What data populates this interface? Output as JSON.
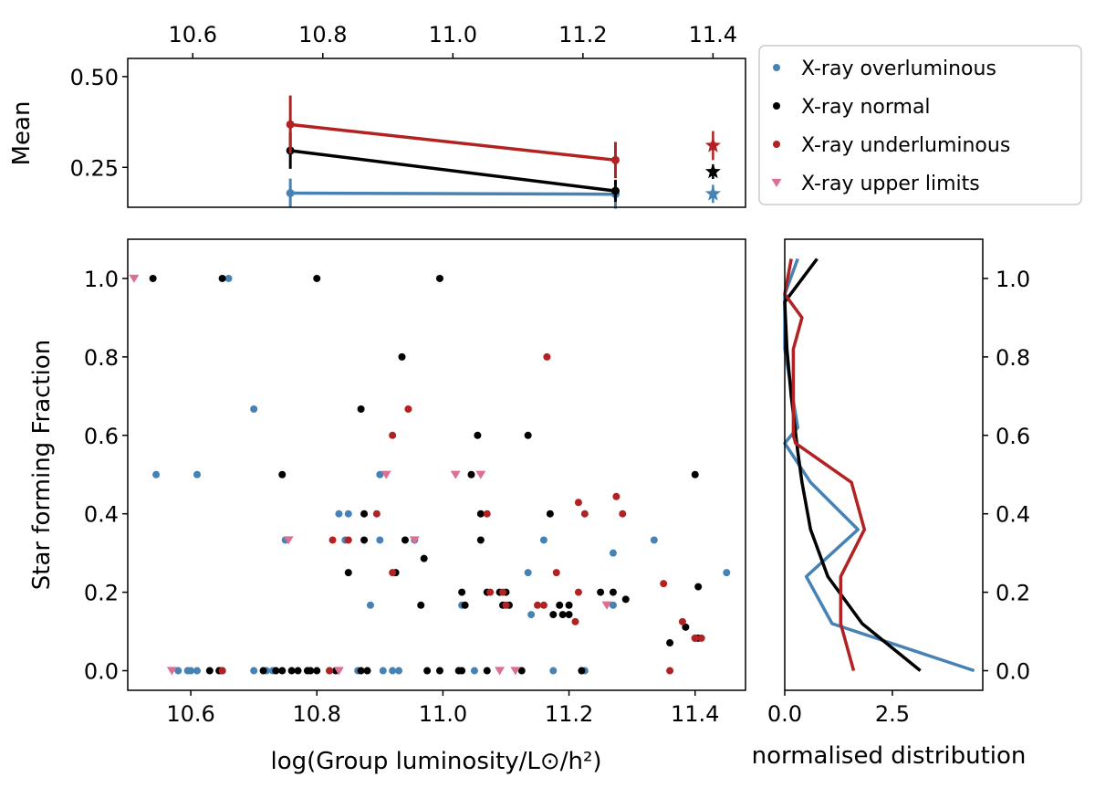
{
  "colors": {
    "overluminous": "#4682b4",
    "normal": "#000000",
    "underluminous": "#b22222",
    "upper_limits": "#db7093"
  },
  "chart_data": [
    {
      "panel": "top",
      "type": "line",
      "title": "",
      "xlabel": "",
      "ylabel": "Mean",
      "xlim": [
        10.5,
        11.45
      ],
      "ylim": [
        0.14,
        0.55
      ],
      "xticks": [
        10.6,
        10.8,
        11.0,
        11.2,
        11.4
      ],
      "xtick_labels": [
        "10.6",
        "10.8",
        "11.0",
        "11.2",
        "11.4"
      ],
      "yticks": [
        0.25,
        0.5
      ],
      "ytick_labels": [
        "0.25",
        "0.50"
      ],
      "series": [
        {
          "name": "X-ray overluminous",
          "key": "overluminous",
          "x": [
            10.75,
            11.25
          ],
          "y": [
            0.179,
            0.176
          ],
          "yerr": [
            0.04,
            0.04
          ],
          "star": {
            "x": 11.4,
            "y": 0.177,
            "err": 0.025
          }
        },
        {
          "name": "X-ray normal",
          "key": "normal",
          "x": [
            10.75,
            11.25
          ],
          "y": [
            0.296,
            0.185
          ],
          "yerr": [
            0.05,
            0.03
          ],
          "star": {
            "x": 11.4,
            "y": 0.238,
            "err": 0.02
          }
        },
        {
          "name": "X-ray underluminous",
          "key": "underluminous",
          "x": [
            10.75,
            11.25
          ],
          "y": [
            0.368,
            0.27
          ],
          "yerr": [
            0.08,
            0.05
          ],
          "star": {
            "x": 11.4,
            "y": 0.31,
            "err": 0.04
          }
        }
      ]
    },
    {
      "panel": "scatter",
      "type": "scatter",
      "title": "",
      "xlabel": "log(Group luminosity/L⊙/h²)",
      "ylabel": "Star forming Fraction",
      "xlim": [
        10.5,
        11.48
      ],
      "ylim": [
        -0.05,
        1.1
      ],
      "xticks": [
        10.6,
        10.8,
        11.0,
        11.2,
        11.4
      ],
      "xtick_labels": [
        "10.6",
        "10.8",
        "11.0",
        "11.2",
        "11.4"
      ],
      "yticks": [
        0.0,
        0.2,
        0.4,
        0.6,
        0.8,
        1.0
      ],
      "ytick_labels": [
        "0.0",
        "0.2",
        "0.4",
        "0.6",
        "0.8",
        "1.0"
      ],
      "series": [
        {
          "name": "X-ray overluminous",
          "key": "overluminous",
          "marker": "circle",
          "points": [
            [
              10.66,
              1.0
            ],
            [
              10.7,
              0.667
            ],
            [
              10.545,
              0.5
            ],
            [
              10.61,
              0.5
            ],
            [
              10.9,
              0.5
            ],
            [
              10.835,
              0.4
            ],
            [
              10.85,
              0.4
            ],
            [
              10.75,
              0.333
            ],
            [
              10.845,
              0.333
            ],
            [
              10.9,
              0.333
            ],
            [
              10.955,
              0.333
            ],
            [
              11.16,
              0.333
            ],
            [
              11.27,
              0.3
            ],
            [
              11.335,
              0.333
            ],
            [
              11.135,
              0.25
            ],
            [
              11.45,
              0.25
            ],
            [
              10.885,
              0.167
            ],
            [
              11.03,
              0.167
            ],
            [
              11.27,
              0.167
            ],
            [
              11.14,
              0.143
            ],
            [
              10.58,
              0
            ],
            [
              10.595,
              0
            ],
            [
              10.6,
              0
            ],
            [
              10.61,
              0
            ],
            [
              10.7,
              0
            ],
            [
              10.72,
              0
            ],
            [
              10.73,
              0
            ],
            [
              10.82,
              0
            ],
            [
              10.865,
              0
            ],
            [
              10.905,
              0
            ],
            [
              10.92,
              0
            ],
            [
              10.93,
              0
            ],
            [
              11.05,
              0
            ],
            [
              11.175,
              0
            ],
            [
              11.225,
              0
            ]
          ]
        },
        {
          "name": "X-ray normal",
          "key": "normal",
          "marker": "circle",
          "points": [
            [
              10.54,
              1.0
            ],
            [
              10.65,
              1.0
            ],
            [
              10.8,
              1.0
            ],
            [
              10.995,
              1.0
            ],
            [
              10.935,
              0.8
            ],
            [
              10.87,
              0.667
            ],
            [
              11.055,
              0.6
            ],
            [
              11.135,
              0.6
            ],
            [
              10.745,
              0.5
            ],
            [
              11.045,
              0.5
            ],
            [
              11.4,
              0.5
            ],
            [
              10.875,
              0.4
            ],
            [
              11.06,
              0.4
            ],
            [
              11.17,
              0.4
            ],
            [
              10.875,
              0.333
            ],
            [
              10.94,
              0.333
            ],
            [
              11.06,
              0.333
            ],
            [
              10.97,
              0.286
            ],
            [
              10.85,
              0.25
            ],
            [
              10.925,
              0.25
            ],
            [
              11.1,
              0.2
            ],
            [
              11.25,
              0.2
            ],
            [
              11.405,
              0.214
            ],
            [
              11.03,
              0.2
            ],
            [
              11.07,
              0.2
            ],
            [
              11.27,
              0.2
            ],
            [
              11.09,
              0.2
            ],
            [
              11.29,
              0.182
            ],
            [
              10.965,
              0.167
            ],
            [
              11.035,
              0.167
            ],
            [
              11.095,
              0.167
            ],
            [
              11.185,
              0.167
            ],
            [
              11.105,
              0.167
            ],
            [
              11.2,
              0.167
            ],
            [
              11.175,
              0.143
            ],
            [
              11.19,
              0.143
            ],
            [
              11.2,
              0.143
            ],
            [
              11.385,
              0.111
            ],
            [
              11.4,
              0.083
            ],
            [
              11.405,
              0.083
            ],
            [
              11.36,
              0.071
            ],
            [
              10.63,
              0
            ],
            [
              10.645,
              0
            ],
            [
              10.65,
              0
            ],
            [
              10.715,
              0
            ],
            [
              10.735,
              0
            ],
            [
              10.745,
              0
            ],
            [
              10.76,
              0
            ],
            [
              10.77,
              0
            ],
            [
              10.785,
              0
            ],
            [
              10.79,
              0
            ],
            [
              10.8,
              0
            ],
            [
              10.83,
              0
            ],
            [
              10.87,
              0
            ],
            [
              10.88,
              0
            ],
            [
              10.975,
              0
            ],
            [
              10.995,
              0
            ],
            [
              11.025,
              0
            ],
            [
              11.03,
              0
            ],
            [
              11.07,
              0
            ],
            [
              11.125,
              0
            ],
            [
              11.22,
              0
            ]
          ]
        },
        {
          "name": "X-ray underluminous",
          "key": "underluminous",
          "marker": "circle",
          "points": [
            [
              11.165,
              0.8
            ],
            [
              10.945,
              0.667
            ],
            [
              10.92,
              0.6
            ],
            [
              10.895,
              0.4
            ],
            [
              11.07,
              0.4
            ],
            [
              11.225,
              0.4
            ],
            [
              10.825,
              0.333
            ],
            [
              10.85,
              0.333
            ],
            [
              10.92,
              0.25
            ],
            [
              11.18,
              0.25
            ],
            [
              11.275,
              0.444
            ],
            [
              11.215,
              0.429
            ],
            [
              11.285,
              0.4
            ],
            [
              11.35,
              0.222
            ],
            [
              11.075,
              0.2
            ],
            [
              11.095,
              0.2
            ],
            [
              11.215,
              0.2
            ],
            [
              11.15,
              0.167
            ],
            [
              11.16,
              0.167
            ],
            [
              11.1,
              0.167
            ],
            [
              11.21,
              0.125
            ],
            [
              11.38,
              0.125
            ],
            [
              11.4,
              0.083
            ],
            [
              11.41,
              0.083
            ],
            [
              10.65,
              0
            ],
            [
              10.82,
              0
            ],
            [
              11.36,
              0
            ]
          ]
        },
        {
          "name": "X-ray upper limits",
          "key": "upper_limits",
          "marker": "triangle-down",
          "points": [
            [
              10.51,
              1.0
            ],
            [
              10.91,
              0.5
            ],
            [
              11.02,
              0.5
            ],
            [
              11.06,
              0.5
            ],
            [
              10.755,
              0.333
            ],
            [
              10.955,
              0.333
            ],
            [
              11.26,
              0.167
            ],
            [
              10.57,
              0
            ],
            [
              10.835,
              0
            ],
            [
              11.09,
              0
            ],
            [
              11.115,
              0
            ]
          ]
        }
      ]
    },
    {
      "panel": "distribution",
      "type": "line",
      "title": "",
      "xlabel": "normalised distribution",
      "ylabel": "",
      "xlim": [
        0,
        4.6
      ],
      "ylim": [
        -0.05,
        1.1
      ],
      "xticks": [
        0.0,
        2.5
      ],
      "xtick_labels": [
        "0.0",
        "2.5"
      ],
      "yticks": [
        0.0,
        0.2,
        0.4,
        0.6,
        0.8,
        1.0
      ],
      "ytick_labels": [
        "0.0",
        "0.2",
        "0.4",
        "0.6",
        "0.8",
        "1.0"
      ],
      "series": [
        {
          "key": "overluminous",
          "points": [
            [
              4.4,
              0.0
            ],
            [
              1.1,
              0.12
            ],
            [
              0.5,
              0.24
            ],
            [
              1.7,
              0.36
            ],
            [
              0.6,
              0.48
            ],
            [
              0.0,
              0.58
            ],
            [
              0.3,
              0.62
            ],
            [
              0.0,
              0.82
            ],
            [
              0.0,
              0.96
            ],
            [
              0.3,
              1.05
            ]
          ]
        },
        {
          "key": "normal",
          "points": [
            [
              3.15,
              0.0
            ],
            [
              1.8,
              0.12
            ],
            [
              1.0,
              0.24
            ],
            [
              0.6,
              0.36
            ],
            [
              0.4,
              0.48
            ],
            [
              0.3,
              0.56
            ],
            [
              0.15,
              0.7
            ],
            [
              0.05,
              0.82
            ],
            [
              0.0,
              0.94
            ],
            [
              0.75,
              1.05
            ]
          ]
        },
        {
          "key": "underluminous",
          "points": [
            [
              1.6,
              0.0
            ],
            [
              1.3,
              0.12
            ],
            [
              1.3,
              0.24
            ],
            [
              1.85,
              0.36
            ],
            [
              1.55,
              0.48
            ],
            [
              0.25,
              0.58
            ],
            [
              0.2,
              0.6
            ],
            [
              0.2,
              0.82
            ],
            [
              0.4,
              0.9
            ],
            [
              0.0,
              0.96
            ],
            [
              0.15,
              1.05
            ]
          ]
        }
      ]
    }
  ],
  "legend": {
    "position": "top-right",
    "items": [
      {
        "label": "X-ray overluminous",
        "key": "overluminous",
        "marker": "circle"
      },
      {
        "label": "X-ray normal",
        "key": "normal",
        "marker": "circle"
      },
      {
        "label": "X-ray underluminous",
        "key": "underluminous",
        "marker": "circle"
      },
      {
        "label": "X-ray upper limits",
        "key": "upper_limits",
        "marker": "triangle-down"
      }
    ]
  }
}
